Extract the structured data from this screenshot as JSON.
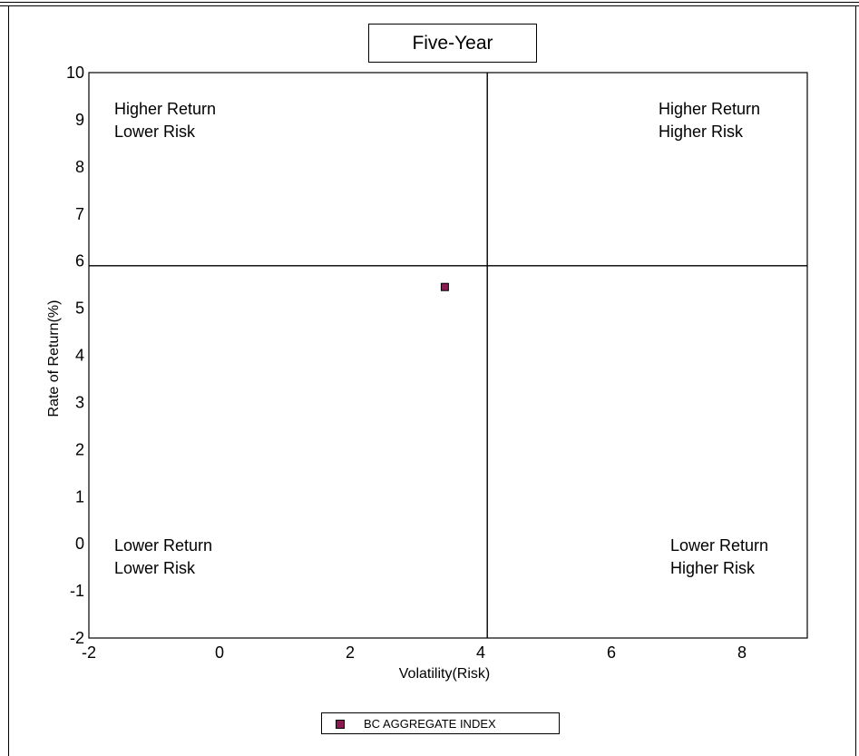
{
  "chart_data": {
    "type": "scatter",
    "title": "Five-Year",
    "xlabel": "Volatility(Risk)",
    "ylabel": "Rate of Return(%)",
    "xlim": [
      -2,
      9
    ],
    "ylim": [
      -2,
      10
    ],
    "x_ticks": [
      "-2",
      "0",
      "2",
      "4",
      "6",
      "8"
    ],
    "y_ticks": [
      "10",
      "9",
      "8",
      "7",
      "6",
      "5",
      "4",
      "3",
      "2",
      "1",
      "0",
      "-1",
      "-2"
    ],
    "divider_x": 4.1,
    "divider_y": 5.9,
    "quadrants": {
      "top_left": [
        "Higher Return",
        "Lower Risk"
      ],
      "top_right": [
        "Higher Return",
        "Higher Risk"
      ],
      "bottom_left": [
        "Lower Return",
        "Lower Risk"
      ],
      "bottom_right": [
        "Lower Return",
        "Higher Risk"
      ]
    },
    "series": [
      {
        "name": "BC AGGREGATE INDEX",
        "points": [
          {
            "x": 3.45,
            "y": 5.45
          }
        ],
        "color": "#8b1a52"
      }
    ],
    "grid": false,
    "legend_position": "bottom-center"
  }
}
